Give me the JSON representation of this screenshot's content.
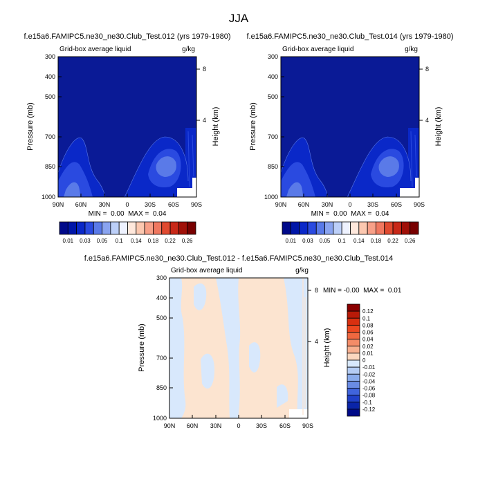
{
  "figure": {
    "title": "JJA"
  },
  "chart_data": [
    {
      "type": "heatmap",
      "title": "f.e15a6.FAMIPC5.ne30_ne30.Club_Test.012 (yrs 1979-1980)",
      "subtitle_left": "Grid-box average liquid",
      "subtitle_right": "g/kg",
      "ylabel": "Pressure (mb)",
      "ylabel_right": "Height (km)",
      "x_ticks": [
        "90N",
        "60N",
        "30N",
        "0",
        "30S",
        "60S",
        "90S"
      ],
      "y_ticks": [
        "300",
        "400",
        "500",
        "700",
        "850",
        "1000"
      ],
      "y_right_ticks": [
        "8",
        "4"
      ],
      "stats": "MIN =  0.00  MAX =  0.04"
    },
    {
      "type": "heatmap",
      "title": "f.e15a6.FAMIPC5.ne30_ne30.Club_Test.014 (yrs 1979-1980)",
      "subtitle_left": "Grid-box average liquid",
      "subtitle_right": "g/kg",
      "ylabel": "Pressure (mb)",
      "ylabel_right": "Height (km)",
      "x_ticks": [
        "90N",
        "60N",
        "30N",
        "0",
        "30S",
        "60S",
        "90S"
      ],
      "y_ticks": [
        "300",
        "400",
        "500",
        "700",
        "850",
        "1000"
      ],
      "y_right_ticks": [
        "8",
        "4"
      ],
      "stats": "MIN =  0.00  MAX =  0.04"
    },
    {
      "type": "heatmap",
      "title": "f.e15a6.FAMIPC5.ne30_ne30.Club_Test.012 - f.e15a6.FAMIPC5.ne30_ne30.Club_Test.014",
      "subtitle_left": "Grid-box average liquid",
      "subtitle_right": "g/kg",
      "ylabel": "Pressure (mb)",
      "ylabel_right": "Height (km)",
      "x_ticks": [
        "90N",
        "60N",
        "30N",
        "0",
        "30S",
        "60S",
        "90S"
      ],
      "y_ticks": [
        "300",
        "400",
        "500",
        "700",
        "850",
        "1000"
      ],
      "y_right_ticks": [
        "8",
        "4"
      ],
      "stats": "MIN = -0.00  MAX =  0.01"
    }
  ],
  "colorbar_top": {
    "labels": [
      "0.01",
      "0.03",
      "0.05",
      "0.1",
      "0.14",
      "0.18",
      "0.22",
      "0.26"
    ],
    "colors": [
      "#000a8a",
      "#0016a8",
      "#0a28c8",
      "#2a4ae0",
      "#5a7ae8",
      "#8aa4f0",
      "#bccff8",
      "#eef2ff",
      "#ffe8dc",
      "#fcc8b0",
      "#f8a088",
      "#f07860",
      "#e04a30",
      "#c82818",
      "#a01008",
      "#780000"
    ]
  },
  "colorbar_diff": {
    "labels": [
      "0.12",
      "0.1",
      "0.08",
      "0.06",
      "0.04",
      "0.02",
      "0.01",
      "0",
      "-0.01",
      "-0.02",
      "-0.04",
      "-0.06",
      "-0.08",
      "-0.1",
      "-0.12"
    ],
    "colors": [
      "#8a0000",
      "#b81a08",
      "#d83010",
      "#ec4820",
      "#f06840",
      "#f48c68",
      "#f8b090",
      "#fcd8c0",
      "#d8e8fc",
      "#b4ccf4",
      "#8aacec",
      "#6a8ce4",
      "#4064dc",
      "#2040c8",
      "#0a24a8",
      "#000a88"
    ]
  }
}
